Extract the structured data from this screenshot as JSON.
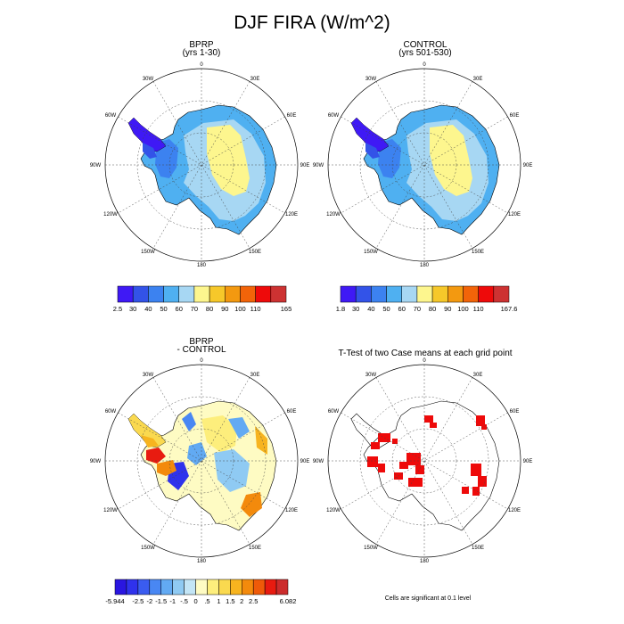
{
  "title": "DJF FIRA (W/m^2)",
  "panels": [
    {
      "id": "bprp",
      "title": "BPRP",
      "subtitle": "(yrs 1-30)"
    },
    {
      "id": "control",
      "title": "CONTROL",
      "subtitle": "(yrs 501-530)"
    },
    {
      "id": "diff",
      "title": "BPRP",
      "subtitle": "- CONTROL"
    },
    {
      "id": "ttest",
      "title": "T-Test of two Case means at each grid point",
      "subtitle": ""
    }
  ],
  "meridian_labels": [
    "0",
    "30E",
    "60E",
    "90E",
    "120E",
    "150E",
    "180",
    "150W",
    "120W",
    "90W",
    "60W",
    "30W"
  ],
  "colorbars": {
    "bprp": {
      "labels": [
        "2.5",
        "30",
        "40",
        "50",
        "60",
        "70",
        "80",
        "90",
        "100",
        "110",
        "165"
      ],
      "colors": [
        "#3f19f5",
        "#3353e8",
        "#3c82f0",
        "#4fb0f1",
        "#a7d7f3",
        "#fdf68e",
        "#f6c82a",
        "#f39910",
        "#f26409",
        "#ee0a0a",
        "#cd3232"
      ]
    },
    "control": {
      "labels": [
        "1.8",
        "30",
        "40",
        "50",
        "60",
        "70",
        "80",
        "90",
        "100",
        "110",
        "167.6"
      ],
      "colors": [
        "#3f19f5",
        "#3353e8",
        "#3c82f0",
        "#4fb0f1",
        "#a7d7f3",
        "#fdf68e",
        "#f6c82a",
        "#f39910",
        "#f26409",
        "#ee0a0a",
        "#cd3232"
      ]
    },
    "diff": {
      "labels": [
        "-5.944",
        "",
        "-2.5",
        "-2",
        "-1.5",
        "-1",
        "-.5",
        "0",
        ".5",
        "1",
        "1.5",
        "2",
        "2.5",
        "",
        "6.082"
      ],
      "colors": [
        "#2a16e0",
        "#2f32ec",
        "#3a5cf0",
        "#4987f3",
        "#62aaf3",
        "#8fcaf3",
        "#c3e5f6",
        "#fefbc3",
        "#fdee7c",
        "#fad94f",
        "#f7b41f",
        "#f38a0c",
        "#ef5a09",
        "#e81b10",
        "#cc2c2c"
      ]
    }
  },
  "footnote": "Cells are significant at 0.1 level",
  "chart_data": [
    {
      "type": "heatmap",
      "title": "BPRP (yrs 1-30)",
      "projection": "south-polar-stereographic",
      "units": "W/m^2",
      "contour_levels": [
        30,
        40,
        50,
        60,
        70,
        80,
        90,
        100,
        110
      ],
      "data_range": [
        2.5,
        165
      ]
    },
    {
      "type": "heatmap",
      "title": "CONTROL (yrs 501-530)",
      "projection": "south-polar-stereographic",
      "units": "W/m^2",
      "contour_levels": [
        30,
        40,
        50,
        60,
        70,
        80,
        90,
        100,
        110
      ],
      "data_range": [
        1.8,
        167.6
      ]
    },
    {
      "type": "heatmap",
      "title": "BPRP - CONTROL",
      "projection": "south-polar-stereographic",
      "units": "W/m^2",
      "contour_levels": [
        -2.5,
        -2,
        -1.5,
        -1,
        -0.5,
        0,
        0.5,
        1,
        1.5,
        2,
        2.5
      ],
      "data_range": [
        -5.944,
        6.082
      ]
    },
    {
      "type": "heatmap",
      "title": "T-Test of two Case means at each grid point",
      "projection": "south-polar-stereographic",
      "significance_level": 0.1
    }
  ]
}
